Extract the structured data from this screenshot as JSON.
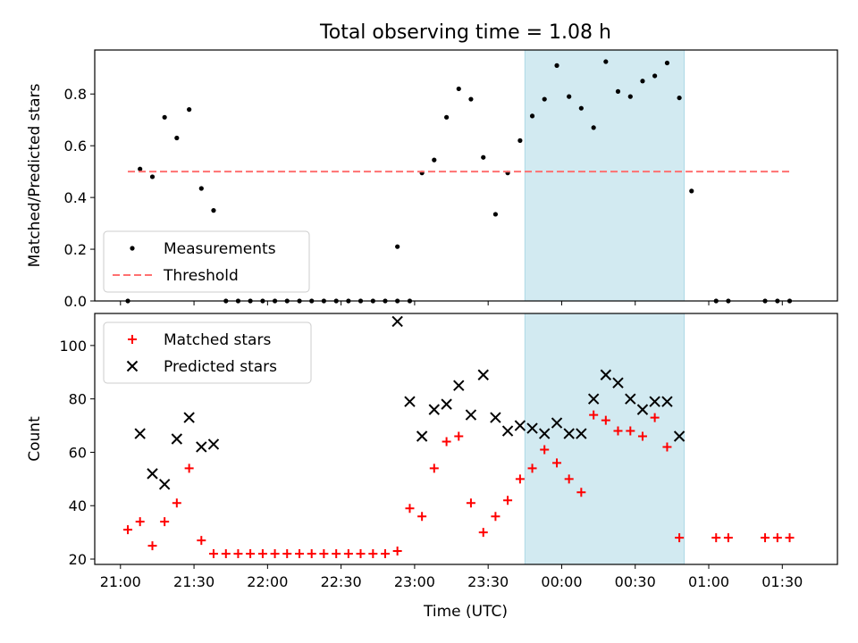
{
  "chart_data": {
    "type": "scatter",
    "title": "Total observing time = 1.08 h",
    "xlabel": "Time (UTC)",
    "x_ticks": [
      "21:00",
      "21:30",
      "22:00",
      "22:30",
      "23:00",
      "23:30",
      "00:00",
      "00:30",
      "01:00",
      "01:30"
    ],
    "x_tick_hours": [
      0,
      0.5,
      1,
      1.5,
      2,
      2.5,
      3,
      3.5,
      4,
      4.5
    ],
    "x_range_hours": [
      -0.175,
      4.875
    ],
    "x_reference": "21:00",
    "highlight_span_hours": [
      2.75,
      3.833
    ],
    "highlight_color": "#add8e6",
    "panels": [
      {
        "ylabel": "Matched/Predicted stars",
        "ylim": [
          0,
          0.97
        ],
        "y_ticks": [
          "0.0",
          "0.2",
          "0.4",
          "0.6",
          "0.8"
        ],
        "y_tick_values": [
          0,
          0.2,
          0.4,
          0.6,
          0.8
        ],
        "legend": {
          "placement": "lower-left",
          "entries": [
            "Measurements",
            "Threshold"
          ]
        },
        "series": [
          {
            "name": "Measurements",
            "marker": "dot",
            "color": "#000000",
            "points": [
              [
                0.05,
                0.0
              ],
              [
                0.133,
                0.51
              ],
              [
                0.217,
                0.48
              ],
              [
                0.3,
                0.71
              ],
              [
                0.383,
                0.63
              ],
              [
                0.467,
                0.74
              ],
              [
                0.55,
                0.435
              ],
              [
                0.633,
                0.35
              ],
              [
                0.717,
                0.0
              ],
              [
                0.8,
                0.0
              ],
              [
                0.883,
                0.0
              ],
              [
                0.967,
                0.0
              ],
              [
                1.05,
                0.0
              ],
              [
                1.133,
                0.0
              ],
              [
                1.217,
                0.0
              ],
              [
                1.3,
                0.0
              ],
              [
                1.383,
                0.0
              ],
              [
                1.467,
                0.0
              ],
              [
                1.55,
                0.0
              ],
              [
                1.633,
                0.0
              ],
              [
                1.717,
                0.0
              ],
              [
                1.8,
                0.0
              ],
              [
                1.883,
                0.0
              ],
              [
                1.967,
                0.0
              ],
              [
                1.883,
                0.21
              ],
              [
                2.05,
                0.495
              ],
              [
                2.133,
                0.545
              ],
              [
                2.217,
                0.71
              ],
              [
                2.3,
                0.82
              ],
              [
                2.383,
                0.78
              ],
              [
                2.467,
                0.555
              ],
              [
                2.55,
                0.335
              ],
              [
                2.633,
                0.495
              ],
              [
                2.717,
                0.62
              ],
              [
                2.8,
                0.715
              ],
              [
                2.883,
                0.78
              ],
              [
                2.967,
                0.91
              ],
              [
                3.05,
                0.79
              ],
              [
                3.133,
                0.745
              ],
              [
                3.217,
                0.67
              ],
              [
                3.3,
                0.925
              ],
              [
                3.383,
                0.81
              ],
              [
                3.467,
                0.79
              ],
              [
                3.55,
                0.85
              ],
              [
                3.633,
                0.87
              ],
              [
                3.717,
                0.92
              ],
              [
                3.8,
                0.785
              ],
              [
                3.883,
                0.425
              ],
              [
                4.05,
                0.0
              ],
              [
                4.133,
                0.0
              ],
              [
                4.383,
                0.0
              ],
              [
                4.467,
                0.0
              ],
              [
                4.55,
                0.0
              ]
            ]
          },
          {
            "name": "Threshold",
            "marker": "dashed-line",
            "color": "#ff7070",
            "x": [
              0.05,
              4.55
            ],
            "y": [
              0.5,
              0.5
            ]
          }
        ]
      },
      {
        "ylabel": "Count",
        "ylim": [
          18,
          112
        ],
        "y_ticks": [
          "20",
          "40",
          "60",
          "80",
          "100"
        ],
        "y_tick_values": [
          20,
          40,
          60,
          80,
          100
        ],
        "legend": {
          "placement": "upper-left",
          "entries": [
            "Matched stars",
            "Predicted stars"
          ]
        },
        "series": [
          {
            "name": "Matched stars",
            "marker": "plus",
            "color": "#ff0000",
            "points": [
              [
                0.05,
                31
              ],
              [
                0.133,
                34
              ],
              [
                0.217,
                25
              ],
              [
                0.3,
                34
              ],
              [
                0.383,
                41
              ],
              [
                0.467,
                54
              ],
              [
                0.55,
                27
              ],
              [
                0.633,
                22
              ],
              [
                0.717,
                22
              ],
              [
                0.8,
                22
              ],
              [
                0.883,
                22
              ],
              [
                0.967,
                22
              ],
              [
                1.05,
                22
              ],
              [
                1.133,
                22
              ],
              [
                1.217,
                22
              ],
              [
                1.3,
                22
              ],
              [
                1.383,
                22
              ],
              [
                1.467,
                22
              ],
              [
                1.55,
                22
              ],
              [
                1.633,
                22
              ],
              [
                1.717,
                22
              ],
              [
                1.8,
                22
              ],
              [
                1.883,
                23
              ],
              [
                1.967,
                39
              ],
              [
                2.05,
                36
              ],
              [
                2.133,
                54
              ],
              [
                2.217,
                64
              ],
              [
                2.3,
                66
              ],
              [
                2.383,
                41
              ],
              [
                2.467,
                30
              ],
              [
                2.55,
                36
              ],
              [
                2.633,
                42
              ],
              [
                2.717,
                50
              ],
              [
                2.8,
                54
              ],
              [
                2.883,
                61
              ],
              [
                2.967,
                56
              ],
              [
                3.05,
                50
              ],
              [
                3.133,
                45
              ],
              [
                3.217,
                74
              ],
              [
                3.3,
                72
              ],
              [
                3.383,
                68
              ],
              [
                3.467,
                68
              ],
              [
                3.55,
                66
              ],
              [
                3.633,
                73
              ],
              [
                3.717,
                62
              ],
              [
                3.8,
                28
              ],
              [
                4.05,
                28
              ],
              [
                4.133,
                28
              ],
              [
                4.383,
                28
              ],
              [
                4.467,
                28
              ],
              [
                4.55,
                28
              ]
            ]
          },
          {
            "name": "Predicted stars",
            "marker": "x",
            "color": "#000000",
            "points": [
              [
                0.133,
                67
              ],
              [
                0.217,
                52
              ],
              [
                0.3,
                48
              ],
              [
                0.383,
                65
              ],
              [
                0.467,
                73
              ],
              [
                0.55,
                62
              ],
              [
                0.633,
                63
              ],
              [
                1.883,
                109
              ],
              [
                1.967,
                79
              ],
              [
                2.05,
                66
              ],
              [
                2.133,
                76
              ],
              [
                2.217,
                78
              ],
              [
                2.3,
                85
              ],
              [
                2.383,
                74
              ],
              [
                2.467,
                89
              ],
              [
                2.55,
                73
              ],
              [
                2.633,
                68
              ],
              [
                2.717,
                70
              ],
              [
                2.8,
                69
              ],
              [
                2.883,
                67
              ],
              [
                2.967,
                71
              ],
              [
                3.05,
                67
              ],
              [
                3.133,
                67
              ],
              [
                3.217,
                80
              ],
              [
                3.3,
                89
              ],
              [
                3.383,
                86
              ],
              [
                3.467,
                80
              ],
              [
                3.55,
                76
              ],
              [
                3.633,
                79
              ],
              [
                3.717,
                79
              ],
              [
                3.8,
                66
              ]
            ]
          }
        ]
      }
    ]
  }
}
